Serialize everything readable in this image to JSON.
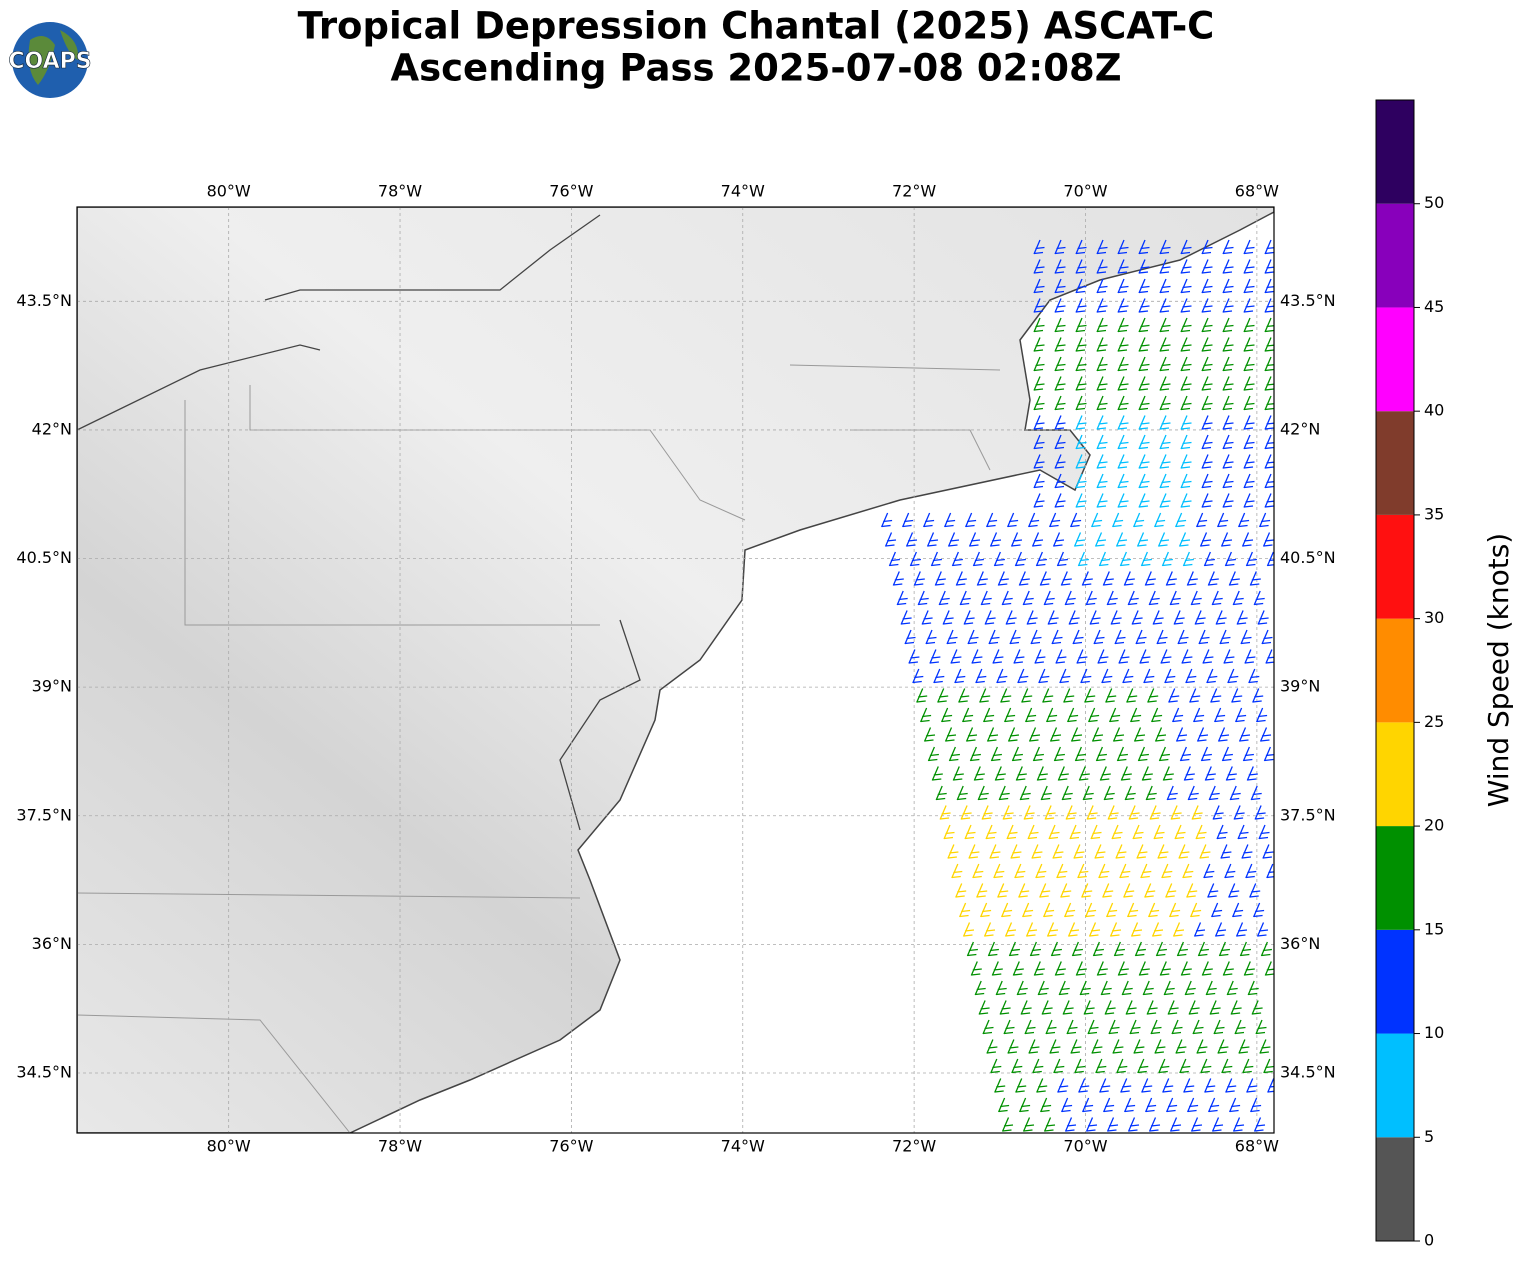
{
  "title": [
    "Tropical Depression Chantal (2025) ASCAT-C",
    "Ascending Pass 2025-07-08 02:08Z"
  ],
  "logo": "COAPS",
  "map": {
    "xlim": [
      -81.77,
      -67.8
    ],
    "ylim": [
      33.8,
      44.6
    ],
    "xticks": [
      {
        "value": -80,
        "label": "80°W"
      },
      {
        "value": -78,
        "label": "78°W"
      },
      {
        "value": -76,
        "label": "76°W"
      },
      {
        "value": -74,
        "label": "74°W"
      },
      {
        "value": -72,
        "label": "72°W"
      },
      {
        "value": -70,
        "label": "70°W"
      },
      {
        "value": -68,
        "label": "68°W"
      }
    ],
    "yticks": [
      {
        "value": 34.5,
        "label": "34.5°N"
      },
      {
        "value": 36,
        "label": "36°N"
      },
      {
        "value": 37.5,
        "label": "37.5°N"
      },
      {
        "value": 39,
        "label": "39°N"
      },
      {
        "value": 40.5,
        "label": "40.5°N"
      },
      {
        "value": 42,
        "label": "42°N"
      },
      {
        "value": 43.5,
        "label": "43.5°N"
      }
    ],
    "grid": true
  },
  "colorbar": {
    "label": "Wind Speed (knots)",
    "lim": [
      0,
      55
    ],
    "ticks": [
      0,
      5,
      10,
      15,
      20,
      25,
      30,
      35,
      40,
      45,
      50
    ],
    "colors": [
      "#555555",
      "#00bfff",
      "#0033ff",
      "#009000",
      "#ffd500",
      "#ff8c00",
      "#ff1010",
      "#803c2c",
      "#ff00ff",
      "#8800bb",
      "#2e0060"
    ]
  }
}
